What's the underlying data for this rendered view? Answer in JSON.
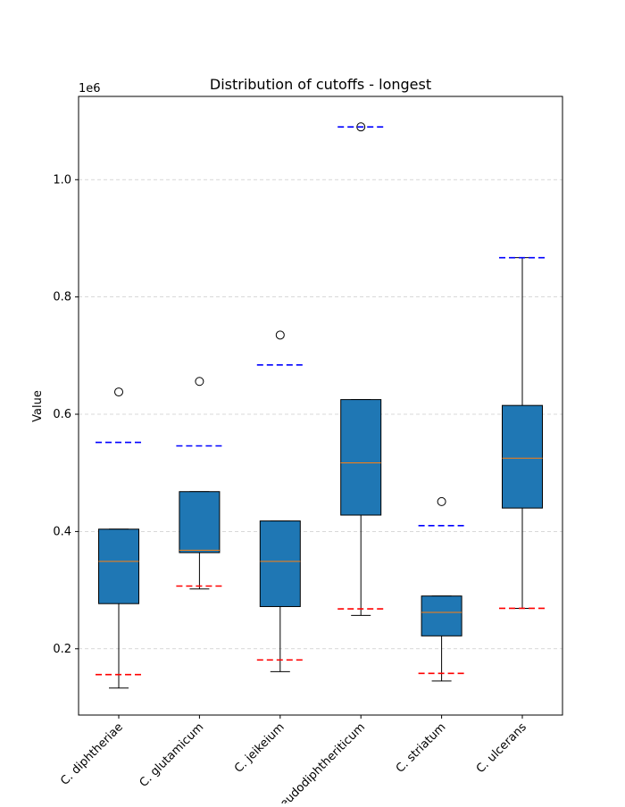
{
  "chart_data": {
    "type": "box",
    "title": "Distribution of cutoffs - longest",
    "ylabel": "Value",
    "xlabel": "",
    "y_offset_label": "1e6",
    "y_scale": 1000000,
    "ylim": [
      87000,
      1142000
    ],
    "yticks": [
      0.2,
      0.4,
      0.6,
      0.8,
      1.0
    ],
    "ytick_labels": [
      "0.2",
      "0.4",
      "0.6",
      "0.8",
      "1.0"
    ],
    "grid": "y dashed",
    "box_color": "#1f77b4",
    "median_color": "#ff7f0e",
    "upper_line_color": "#0000ff",
    "lower_line_color": "#ff0000",
    "categories": [
      "C. diphtheriae",
      "C. glutamicum",
      "C. jeikeium",
      "C. pseudodiphtheriticum",
      "C. striatum",
      "C. ulcerans"
    ],
    "boxes": [
      {
        "whislo": 133000,
        "q1": 277000,
        "med": 349000,
        "q3": 404000,
        "whishi": 404000,
        "fliers": [
          638000
        ],
        "upper_line": 552000,
        "lower_line": 156000
      },
      {
        "whislo": 302000,
        "q1": 364000,
        "med": 368000,
        "q3": 468000,
        "whishi": 468000,
        "fliers": [
          656000
        ],
        "upper_line": 546000,
        "lower_line": 307000
      },
      {
        "whislo": 161000,
        "q1": 272000,
        "med": 349000,
        "q3": 418000,
        "whishi": 418000,
        "fliers": [
          735000
        ],
        "upper_line": 684000,
        "lower_line": 181000
      },
      {
        "whislo": 257000,
        "q1": 428000,
        "med": 517000,
        "q3": 625000,
        "whishi": 625000,
        "fliers": [
          1090000
        ],
        "upper_line": 1090000,
        "lower_line": 268000
      },
      {
        "whislo": 145000,
        "q1": 222000,
        "med": 262000,
        "q3": 290000,
        "whishi": 290000,
        "fliers": [
          451000
        ],
        "upper_line": 410000,
        "lower_line": 158000
      },
      {
        "whislo": 269000,
        "q1": 440000,
        "med": 525000,
        "q3": 615000,
        "whishi": 867000,
        "fliers": [],
        "upper_line": 867000,
        "lower_line": 269000
      }
    ]
  }
}
